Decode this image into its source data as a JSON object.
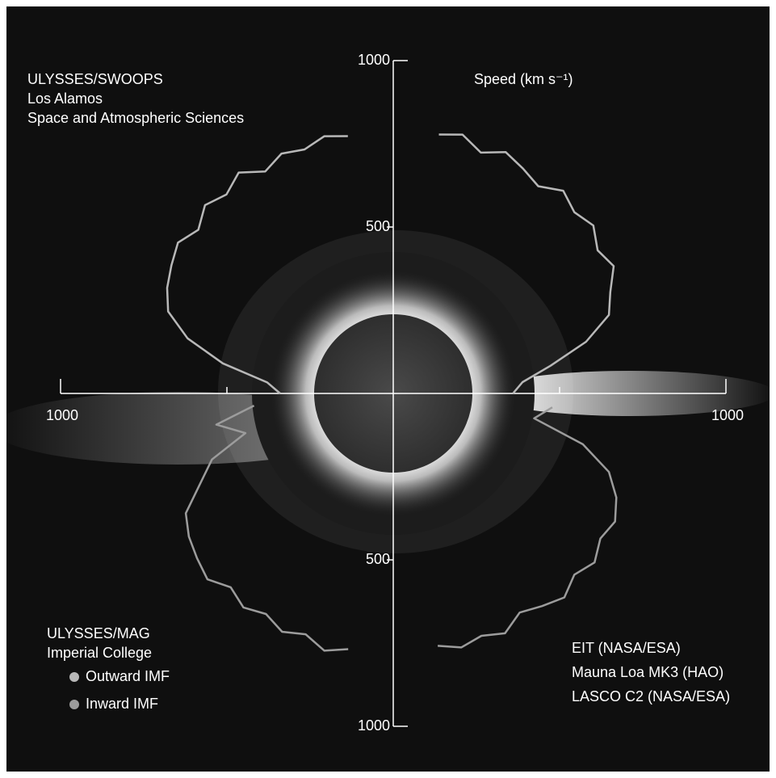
{
  "chart_data": {
    "type": "polar",
    "texts": [
      "ULYSSES/SWOOPS",
      "Los Alamos",
      "Space and Atmospheric Sciences"
    ],
    "axis_label": "Speed (km s⁻¹)",
    "legend_title": [
      "ULYSSES/MAG",
      "Imperial College"
    ],
    "credits": [
      "EIT (NASA/ESA)",
      "Mauna Loa MK3 (HAO)",
      "LASCO C2 (NASA/ESA)"
    ],
    "rlim": [
      0,
      1000
    ],
    "rticks": [
      500,
      1000
    ],
    "series": [
      {
        "name": "Outward IMF",
        "color": "#b8b8b8",
        "x": [
          10,
          15,
          20,
          25,
          30,
          35,
          40,
          45,
          50,
          55,
          60,
          65,
          70,
          75,
          80,
          85,
          90,
          null,
          270,
          275,
          280,
          285,
          290,
          295,
          300,
          305,
          310,
          315,
          320,
          325,
          330,
          335,
          340,
          345,
          350
        ],
        "values": [
          790,
          805,
          770,
          800,
          780,
          760,
          795,
          770,
          785,
          750,
          765,
          720,
          690,
          600,
          480,
          390,
          360,
          null,
          340,
          380,
          520,
          640,
          720,
          750,
          770,
          790,
          765,
          800,
          780,
          810,
          770,
          795,
          780,
          800,
          785
        ]
      },
      {
        "name": "Inward IMF",
        "color": "#9c9c9c",
        "x": [
          95,
          100,
          105,
          110,
          115,
          120,
          125,
          130,
          135,
          140,
          145,
          150,
          155,
          160,
          165,
          170,
          null,
          190,
          195,
          200,
          205,
          210,
          215,
          220,
          225,
          230,
          235,
          240,
          245,
          250,
          255,
          260,
          265
        ],
        "values": [
          480,
          430,
          590,
          690,
          740,
          770,
          760,
          790,
          770,
          800,
          780,
          760,
          795,
          775,
          790,
          770,
          null,
          780,
          800,
          770,
          790,
          765,
          785,
          760,
          790,
          770,
          750,
          720,
          640,
          580,
          460,
          540,
          420
        ]
      }
    ]
  }
}
